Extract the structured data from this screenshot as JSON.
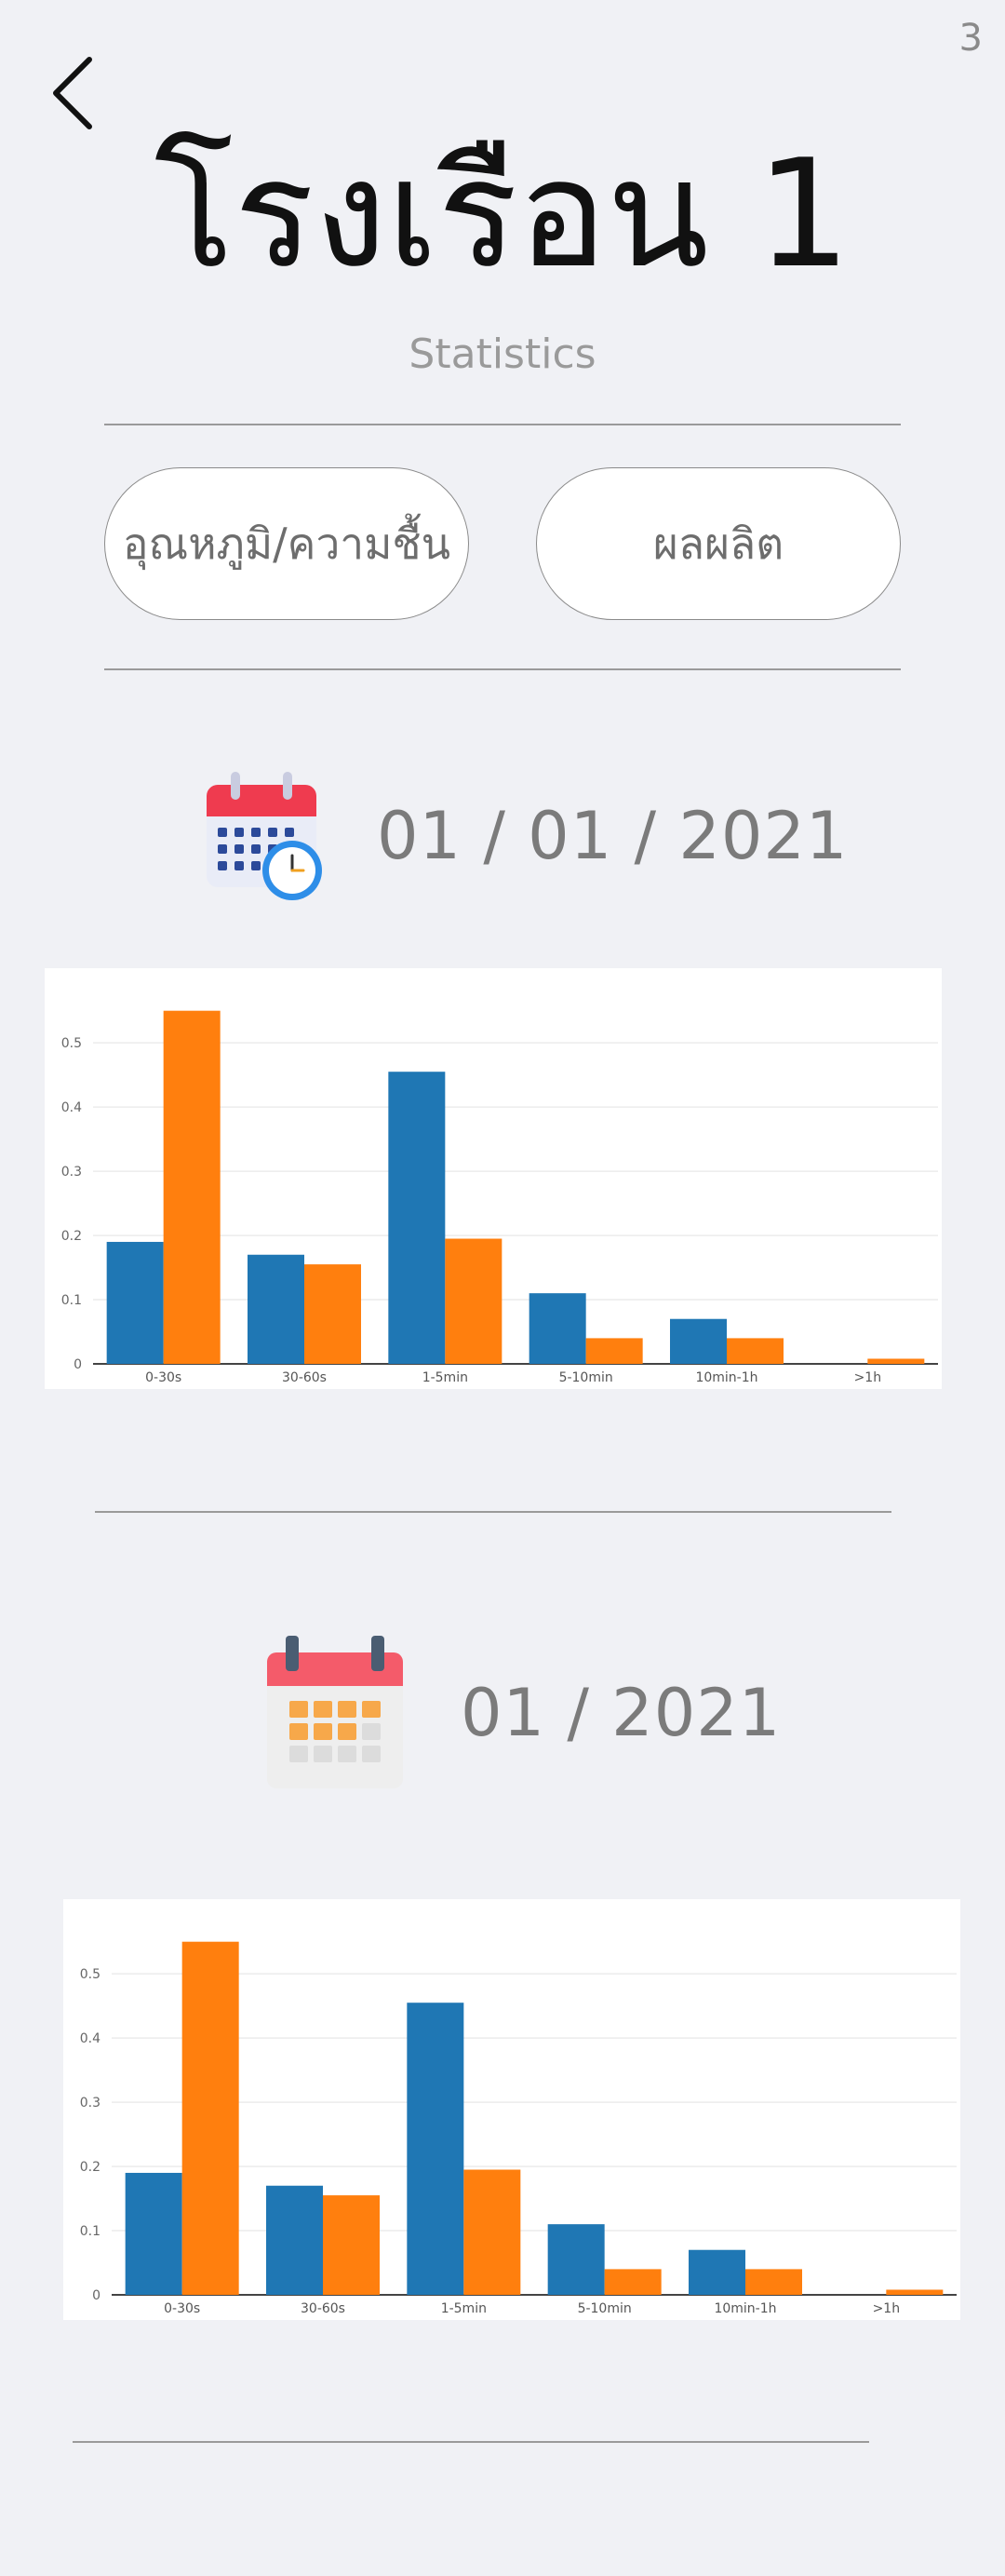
{
  "page_number": "3",
  "header": {
    "title": "โรงเรือน 1",
    "subtitle": "Statistics",
    "back_icon": "chevron-left-icon"
  },
  "tabs": [
    {
      "label": "อุณหภูมิ/ความชื้น"
    },
    {
      "label": "ผลผลิต"
    }
  ],
  "daily": {
    "icon": "calendar-clock-icon",
    "date": "01 / 01 / 2021"
  },
  "monthly": {
    "icon": "calendar-month-icon",
    "date": "01 / 2021"
  },
  "colors": {
    "series_blue": "#1f77b4",
    "series_orange": "#ff7f0e"
  },
  "chart_data": [
    {
      "type": "bar",
      "categories": [
        "0-30s",
        "30-60s",
        "1-5min",
        "5-10min",
        "10min-1h",
        ">1h"
      ],
      "series": [
        {
          "values": [
            0.19,
            0.17,
            0.455,
            0.11,
            0.07,
            0.0
          ]
        },
        {
          "values": [
            0.55,
            0.155,
            0.195,
            0.04,
            0.04,
            0.008
          ]
        }
      ],
      "y_ticks": [
        "0",
        "0.1",
        "0.2",
        "0.3",
        "0.4",
        "0.5"
      ],
      "ylim": [
        0,
        0.58
      ],
      "grid": true
    },
    {
      "type": "bar",
      "categories": [
        "0-30s",
        "30-60s",
        "1-5min",
        "5-10min",
        "10min-1h",
        ">1h"
      ],
      "series": [
        {
          "values": [
            0.19,
            0.17,
            0.455,
            0.11,
            0.07,
            0.0
          ]
        },
        {
          "values": [
            0.55,
            0.155,
            0.195,
            0.04,
            0.04,
            0.008
          ]
        }
      ],
      "y_ticks": [
        "0",
        "0.1",
        "0.2",
        "0.3",
        "0.4",
        "0.5"
      ],
      "ylim": [
        0,
        0.58
      ],
      "grid": true
    }
  ]
}
